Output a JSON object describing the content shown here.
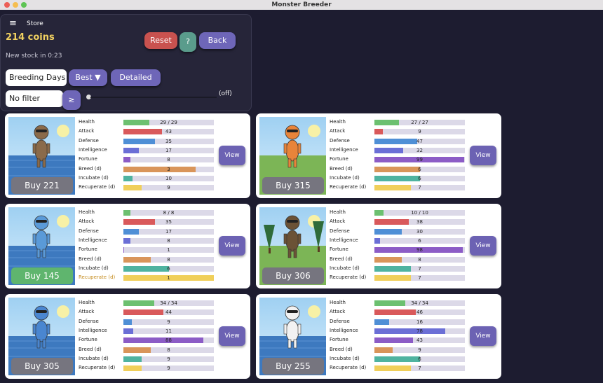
{
  "window_title": "Monster Breeder",
  "store": {
    "title": "Store",
    "coins": "214 coins",
    "restock": "New stock in 0:23",
    "reset": "Reset",
    "help": "?",
    "back": "Back",
    "sort_field": "Breeding Days",
    "sort_order": "Best ▼",
    "detail": "Detailed",
    "filter": "No filter",
    "compare": "≥",
    "filter_state": "(off)"
  },
  "stat_labels": [
    "Health",
    "Attack",
    "Defense",
    "Intelligence",
    "Fortune",
    "Breed (d)",
    "Incubate (d)",
    "Recuperate (d)"
  ],
  "view": "View",
  "monsters": [
    {
      "price_label": "Buy 221",
      "buy_color": "#76757f",
      "health": {
        "value": 29,
        "label": "29 / 29"
      },
      "stats": [
        43,
        35,
        17,
        8,
        3,
        10,
        9
      ]
    },
    {
      "price_label": "Buy 315",
      "buy_color": "#76757f",
      "health": {
        "value": 27,
        "label": "27 / 27"
      },
      "stats": [
        9,
        47,
        32,
        99,
        6,
        6,
        7
      ]
    },
    {
      "price_label": "Buy 145",
      "buy_color": "#5fb56e",
      "health": {
        "value": 8,
        "label": "8 / 8"
      },
      "stats": [
        35,
        17,
        8,
        1,
        8,
        6,
        1
      ]
    },
    {
      "price_label": "Buy 306",
      "buy_color": "#76757f",
      "health": {
        "value": 10,
        "label": "10 / 10"
      },
      "stats": [
        38,
        30,
        6,
        98,
        8,
        7,
        7
      ]
    },
    {
      "price_label": "Buy 305",
      "buy_color": "#76757f",
      "health": {
        "value": 34,
        "label": "34 / 34"
      },
      "stats": [
        44,
        9,
        11,
        88,
        8,
        9,
        9
      ]
    },
    {
      "price_label": "Buy 255",
      "buy_color": "#76757f",
      "health": {
        "value": 34,
        "label": "34 / 34"
      },
      "stats": [
        46,
        16,
        78,
        43,
        9,
        6,
        7
      ]
    }
  ]
}
